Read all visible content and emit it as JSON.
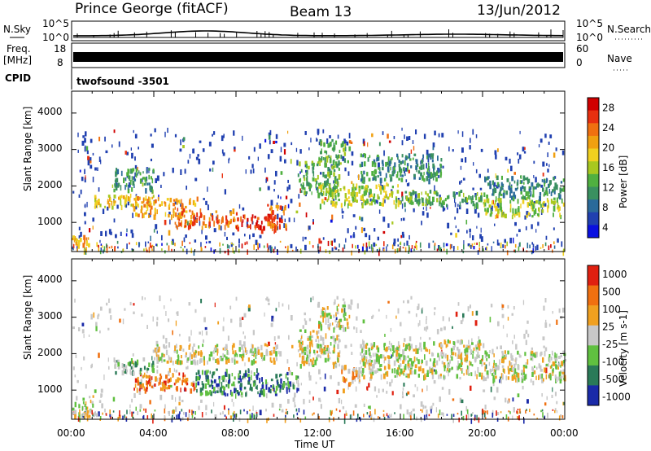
{
  "header": {
    "station": "Prince George (fitACF)",
    "beam": "Beam 13",
    "date": "13/Jun/2012"
  },
  "strip": {
    "nsky_label": "N.Sky",
    "nsky_ticks": [
      "10^5",
      "10^0"
    ],
    "nsearch_label": "N.Search",
    "freq_label": "Freq.",
    "freq_unit": "[MHz]",
    "freq_ticks": [
      "18",
      "8"
    ],
    "nave_label": "Nave",
    "nave_ticks": [
      "60",
      "0"
    ],
    "cpid_label": "CPID",
    "cpid_value": "twofsound -3501"
  },
  "chart_data": [
    {
      "type": "heatmap",
      "name": "Power",
      "ylabel": "Slant Range [km]",
      "ylim": [
        200,
        4600
      ],
      "y_ticks": [
        "4000",
        "3000",
        "2000",
        "1000"
      ],
      "x_range_hours": [
        0,
        24
      ],
      "colorbar_label": "Power [dB]",
      "colorbar_ticks": [
        "28",
        "24",
        "20",
        "16",
        "12",
        "8",
        "4"
      ],
      "colorbar_colors": [
        "#0a10e0",
        "#2040b0",
        "#2a6a9a",
        "#3a9060",
        "#50b040",
        "#a8c820",
        "#f0d020",
        "#f0a010",
        "#f07010",
        "#e83010",
        "#d00000"
      ],
      "scatter_color": "#2040b0",
      "bands": [
        {
          "x": [
            0,
            0.8
          ],
          "y": [
            300,
            700
          ],
          "level": 7
        },
        {
          "x": [
            1,
            4
          ],
          "y": [
            1450,
            1800
          ],
          "level": 6
        },
        {
          "x": [
            2,
            4
          ],
          "y": [
            1900,
            2500
          ],
          "level": 3
        },
        {
          "x": [
            3,
            6
          ],
          "y": [
            1200,
            1700
          ],
          "level": 7
        },
        {
          "x": [
            5,
            8
          ],
          "y": [
            900,
            1400
          ],
          "level": 8
        },
        {
          "x": [
            8,
            10
          ],
          "y": [
            800,
            1250
          ],
          "level": 9
        },
        {
          "x": [
            9.5,
            10.5
          ],
          "y": [
            900,
            1500
          ],
          "level": 8
        },
        {
          "x": [
            11,
            13
          ],
          "y": [
            1800,
            2700
          ],
          "level": 4
        },
        {
          "x": [
            12,
            13.5
          ],
          "y": [
            2600,
            3300
          ],
          "level": 4
        },
        {
          "x": [
            12,
            16
          ],
          "y": [
            1500,
            2100
          ],
          "level": 5
        },
        {
          "x": [
            14,
            18
          ],
          "y": [
            2200,
            2900
          ],
          "level": 3
        },
        {
          "x": [
            16,
            20
          ],
          "y": [
            1500,
            1900
          ],
          "level": 4
        },
        {
          "x": [
            20,
            24
          ],
          "y": [
            1200,
            1700
          ],
          "level": 5
        },
        {
          "x": [
            20,
            24
          ],
          "y": [
            1700,
            2300
          ],
          "level": 3
        }
      ]
    },
    {
      "type": "heatmap",
      "name": "Velocity",
      "ylabel": "Slant Range [km]",
      "xlabel": "Time UT",
      "ylim": [
        200,
        4600
      ],
      "y_ticks": [
        "4000",
        "3000",
        "2000",
        "1000"
      ],
      "x_range_hours": [
        0,
        24
      ],
      "x_ticks": [
        "00:00",
        "04:00",
        "08:00",
        "12:00",
        "16:00",
        "20:00",
        "00:00"
      ],
      "colorbar_label": "Velocity [m s-1]",
      "colorbar_ticks": [
        "1000",
        "500",
        "100",
        "25",
        "-25",
        "-100",
        "-500",
        "-1000"
      ],
      "colorbar_colors": [
        "#1a2aa8",
        "#2a7a58",
        "#60c040",
        "#c8c8c8",
        "#f0a020",
        "#f07010",
        "#e02010"
      ],
      "scatter_color": "#c8c8c8",
      "bands": [
        {
          "x": [
            0,
            1
          ],
          "y": [
            300,
            800
          ],
          "level": 3
        },
        {
          "x": [
            3,
            6
          ],
          "y": [
            1000,
            1500
          ],
          "level": 5
        },
        {
          "x": [
            2,
            4
          ],
          "y": [
            1500,
            1900
          ],
          "level": 2
        },
        {
          "x": [
            6,
            10
          ],
          "y": [
            900,
            1600
          ],
          "level": 1
        },
        {
          "x": [
            10,
            11
          ],
          "y": [
            1000,
            1500
          ],
          "level": 1
        },
        {
          "x": [
            11,
            13
          ],
          "y": [
            1700,
            2700
          ],
          "level": 3
        },
        {
          "x": [
            12,
            13.5
          ],
          "y": [
            2700,
            3400
          ],
          "level": 3
        },
        {
          "x": [
            13,
            14
          ],
          "y": [
            1200,
            1700
          ],
          "level": 4
        },
        {
          "x": [
            14,
            20
          ],
          "y": [
            1400,
            2400
          ],
          "level": 3
        },
        {
          "x": [
            20,
            24
          ],
          "y": [
            1300,
            2100
          ],
          "level": 3
        },
        {
          "x": [
            4,
            10
          ],
          "y": [
            1800,
            2300
          ],
          "level": 3
        }
      ]
    }
  ]
}
